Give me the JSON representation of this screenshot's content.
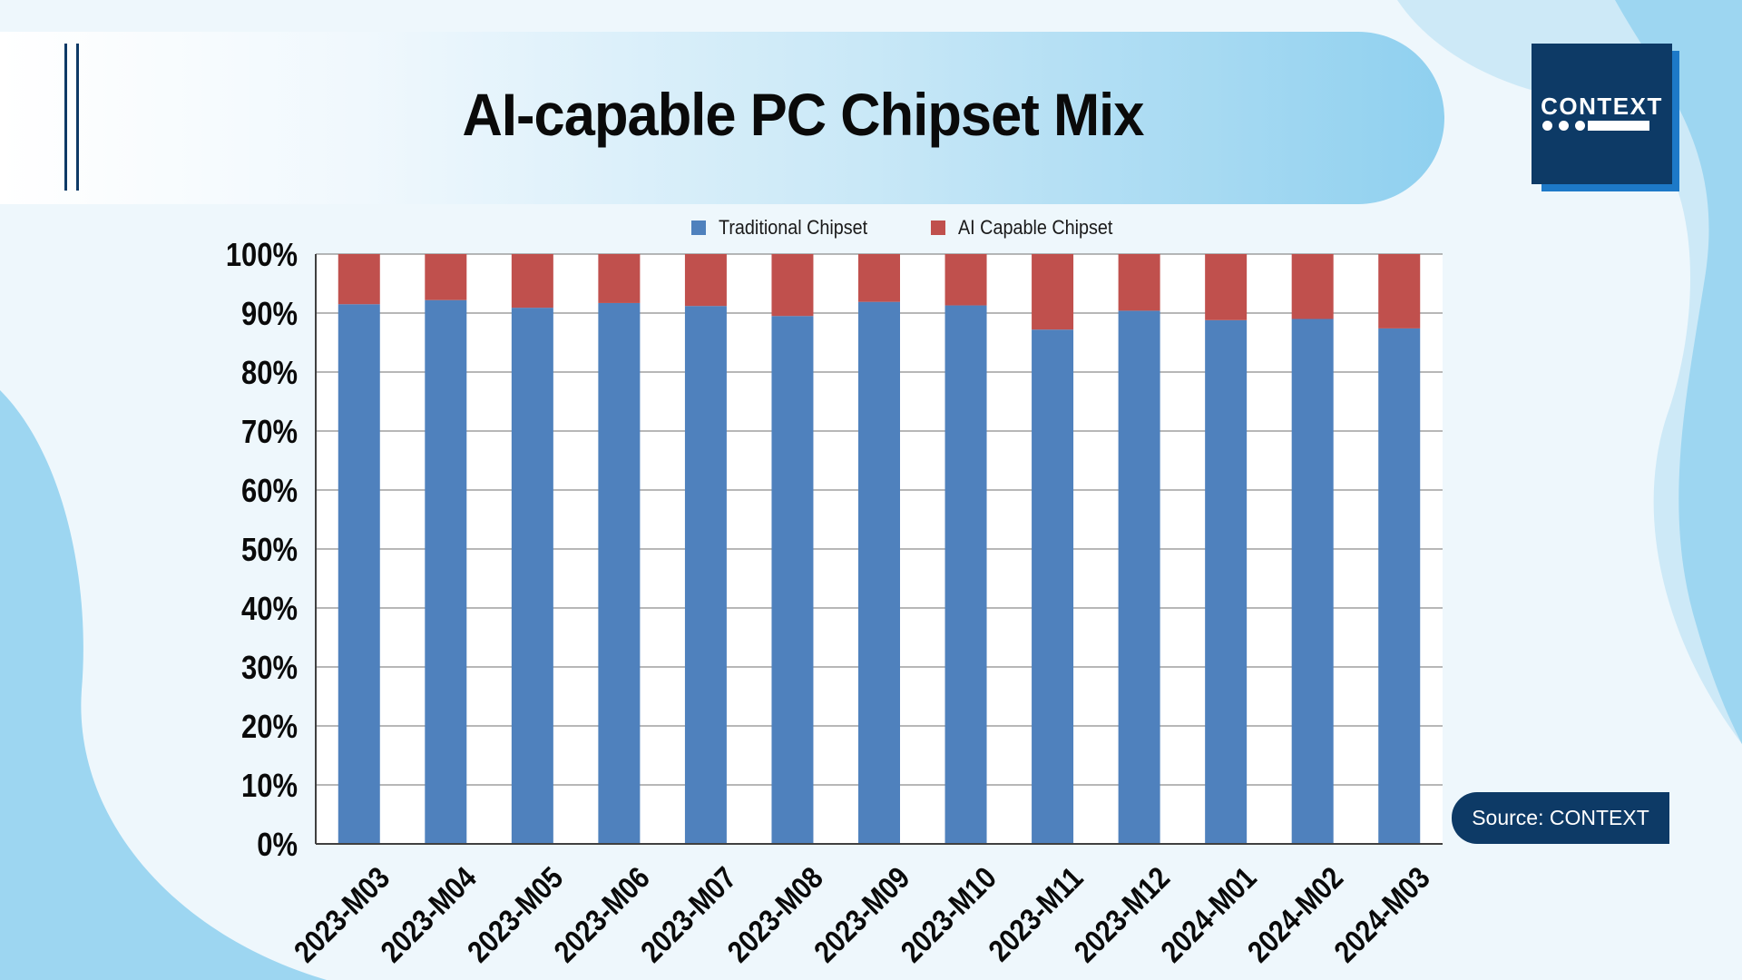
{
  "header": {
    "title": "AI-capable PC Chipset Mix"
  },
  "logo": {
    "text": "CONTEXT"
  },
  "source": {
    "text": "Source: CONTEXT"
  },
  "colors": {
    "traditional": "#4f81bd",
    "ai": "#c0504d",
    "navy": "#0d3a66",
    "background": "#eef7fc"
  },
  "chart_data": {
    "type": "bar",
    "stacked": true,
    "percent_stacked": true,
    "title": "AI-capable PC Chipset Mix",
    "categories": [
      "2023-M03",
      "2023-M04",
      "2023-M05",
      "2023-M06",
      "2023-M07",
      "2023-M08",
      "2023-M09",
      "2023-M10",
      "2023-M11",
      "2023-M12",
      "2024-M01",
      "2024-M02",
      "2024-M03"
    ],
    "series": [
      {
        "name": "Traditional Chipset",
        "color": "#4f81bd",
        "values": [
          91.5,
          92.2,
          90.9,
          91.7,
          91.2,
          89.5,
          91.9,
          91.3,
          87.2,
          90.4,
          88.8,
          89.0,
          87.4
        ]
      },
      {
        "name": "AI Capable Chipset",
        "color": "#c0504d",
        "values": [
          8.5,
          7.8,
          9.1,
          8.3,
          8.8,
          10.5,
          8.1,
          8.7,
          12.8,
          9.6,
          11.2,
          11.0,
          12.6
        ]
      }
    ],
    "yticks": [
      "0%",
      "10%",
      "20%",
      "30%",
      "40%",
      "50%",
      "60%",
      "70%",
      "80%",
      "90%",
      "100%"
    ],
    "ylim": [
      0,
      100
    ],
    "xlabel": "",
    "ylabel": "",
    "grid": true,
    "legend": "top"
  }
}
